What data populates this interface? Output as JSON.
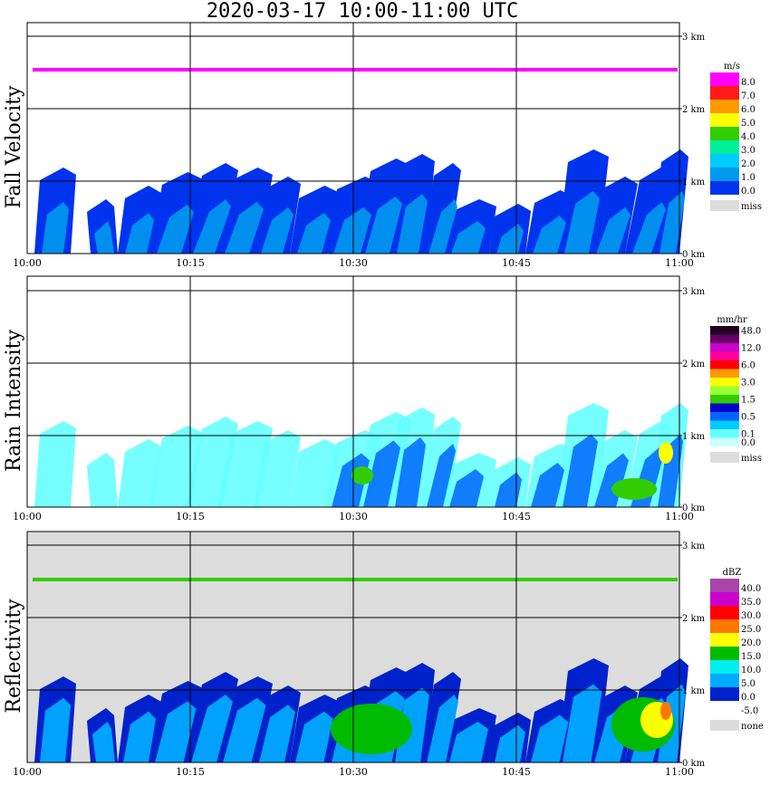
{
  "title": "2020-03-17   10:00-11:00 UTC",
  "time_ticks": [
    "10:00",
    "10:15",
    "10:30",
    "10:45",
    "11:00"
  ],
  "height_ticks": [
    "0 km",
    "1 km",
    "2 km",
    "3 km"
  ],
  "panels": [
    {
      "name": "Fall Velocity",
      "unit": "m/s",
      "missing_label": "miss",
      "missing_color": "#dcdcdc",
      "background": "#ffffff",
      "legend": [
        {
          "label": "8.0",
          "color": "#ff00ff"
        },
        {
          "label": "7.0",
          "color": "#ff1a1a"
        },
        {
          "label": "6.0",
          "color": "#ff9900"
        },
        {
          "label": "5.0",
          "color": "#ffff00"
        },
        {
          "label": "4.0",
          "color": "#33cc00"
        },
        {
          "label": "3.0",
          "color": "#00ee99"
        },
        {
          "label": "2.0",
          "color": "#00ccff"
        },
        {
          "label": "1.0",
          "color": "#0099ee"
        },
        {
          "label": "0.0",
          "color": "#0033ee"
        }
      ]
    },
    {
      "name": "Rain Intensity",
      "unit": "mm/hr",
      "missing_label": "miss",
      "missing_color": "#dcdcdc",
      "background": "#ffffff",
      "legend": [
        {
          "label": "48.0",
          "color": "#220022"
        },
        {
          "label": "",
          "color": "#660066"
        },
        {
          "label": "12.0",
          "color": "#cc00cc"
        },
        {
          "label": "",
          "color": "#ff0099"
        },
        {
          "label": "6.0",
          "color": "#ff0000"
        },
        {
          "label": "",
          "color": "#ff9900"
        },
        {
          "label": "3.0",
          "color": "#ffff00"
        },
        {
          "label": "",
          "color": "#99ff33"
        },
        {
          "label": "1.5",
          "color": "#33cc00"
        },
        {
          "label": "",
          "color": "#0000cc"
        },
        {
          "label": "0.5",
          "color": "#0066ff"
        },
        {
          "label": "",
          "color": "#00ccff"
        },
        {
          "label": "0.1",
          "color": "#66ffff"
        },
        {
          "label": "0.0",
          "color": "#ccffff"
        }
      ]
    },
    {
      "name": "Reflectivity",
      "unit": "dBZ",
      "missing_label": "none",
      "missing_color": "#dcdcdc",
      "background": "#dcdcdc",
      "legend": [
        {
          "label": "40.0",
          "color": "#aa44aa"
        },
        {
          "label": "35.0",
          "color": "#cc00cc"
        },
        {
          "label": "30.0",
          "color": "#ff0000"
        },
        {
          "label": "25.0",
          "color": "#ff7700"
        },
        {
          "label": "20.0",
          "color": "#ffff00"
        },
        {
          "label": "15.0",
          "color": "#00bb00"
        },
        {
          "label": "10.0",
          "color": "#00eeee"
        },
        {
          "label": "5.0",
          "color": "#00aaff"
        },
        {
          "label": "0.0",
          "color": "#0022cc"
        },
        {
          "label": "-5.0",
          "color": "#ffffff"
        }
      ]
    }
  ]
}
